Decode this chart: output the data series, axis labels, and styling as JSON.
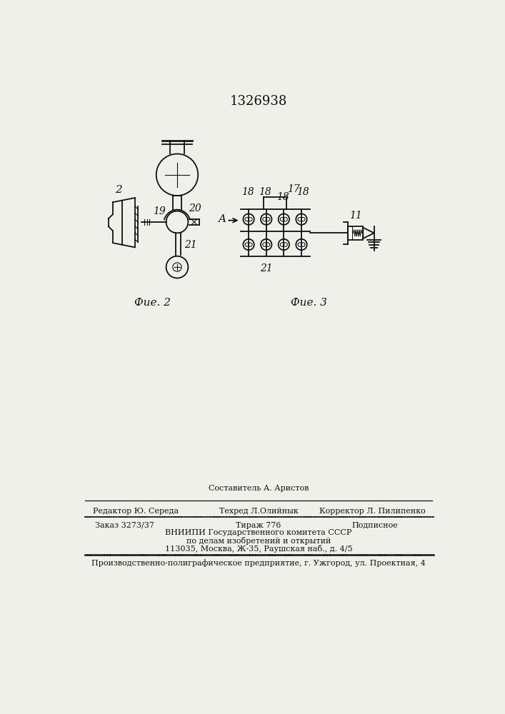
{
  "title_number": "1326938",
  "fig2_label": "Фие. 2",
  "fig3_label": "Фие. 3",
  "label_2": "2",
  "label_19": "19",
  "label_20": "20",
  "label_21": "21",
  "label_18": "18",
  "label_17": "17",
  "label_11": "11",
  "label_A": "A",
  "sestavitel_line": "Составитель А. Аристов",
  "editor_left": "Редактор Ю. Середа",
  "editor_mid": "Техред Л.Олийнык",
  "editor_right": "Корректор Л. Пилипенко",
  "order_left": "Заказ 3273/37",
  "order_mid": "Тираж 776",
  "order_right": "Подписное",
  "vnipi_line1": "ВНИИПИ Государственного комитета СССР",
  "vnipi_line2": "по делам изобретений и открытий",
  "vnipi_line3": "113035, Москва, Ж-35, Раушская наб., д. 4/5",
  "production_line": "Производственно-полиграфическое предприятие, г. Ужгород, ул. Проектная, 4",
  "bg_color": "#f0f0eb",
  "line_color": "#111111",
  "text_color": "#111111"
}
